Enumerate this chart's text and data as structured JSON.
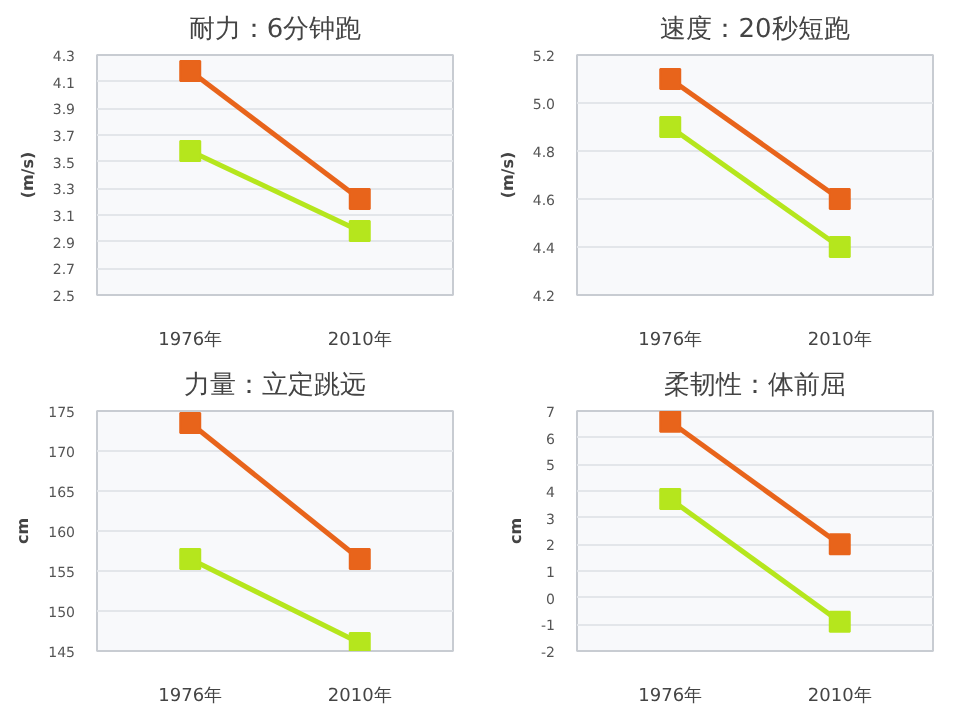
{
  "chart_data": [
    {
      "type": "line",
      "title": "耐力：6分钟跑",
      "ylabel": "(m/s)",
      "categories": [
        "1976年",
        "2010年"
      ],
      "ylim": [
        2.5,
        4.3
      ],
      "yticks": [
        2.5,
        2.7,
        2.9,
        3.1,
        3.3,
        3.5,
        3.7,
        3.9,
        4.1,
        4.3
      ],
      "grid": "y",
      "marker": "square",
      "series": [
        {
          "color": "#e8641b",
          "values": [
            4.18,
            3.22
          ]
        },
        {
          "color": "#b5e61d",
          "values": [
            3.58,
            2.98
          ]
        }
      ]
    },
    {
      "type": "line",
      "title": "速度：20秒短跑",
      "ylabel": "(m/s)",
      "categories": [
        "1976年",
        "2010年"
      ],
      "ylim": [
        4.2,
        5.2
      ],
      "yticks": [
        4.2,
        4.4,
        4.6,
        4.8,
        {
          "value": 5.0,
          "label": "5.0"
        },
        5.2
      ],
      "grid": "y",
      "marker": "square",
      "series": [
        {
          "color": "#e8641b",
          "values": [
            5.1,
            4.6
          ]
        },
        {
          "color": "#b5e61d",
          "values": [
            4.9,
            4.4
          ]
        }
      ]
    },
    {
      "type": "line",
      "title": "力量：立定跳远",
      "ylabel": "cm",
      "categories": [
        "1976年",
        "2010年"
      ],
      "ylim": [
        145,
        175
      ],
      "yticks": [
        145,
        150,
        155,
        160,
        165,
        170,
        175
      ],
      "grid": "y",
      "marker": "square",
      "series": [
        {
          "color": "#e8641b",
          "values": [
            173.5,
            156.5
          ]
        },
        {
          "color": "#b5e61d",
          "values": [
            156.5,
            146
          ]
        }
      ]
    },
    {
      "type": "line",
      "title": "柔韧性：体前屈",
      "ylabel": "cm",
      "categories": [
        "1976年",
        "2010年"
      ],
      "ylim": [
        -2,
        7
      ],
      "yticks": [
        -2,
        -1,
        0,
        1,
        2,
        3,
        4,
        5,
        6,
        7
      ],
      "grid": "y",
      "marker": "square",
      "series": [
        {
          "color": "#e8641b",
          "values": [
            6.6,
            2.0
          ]
        },
        {
          "color": "#b5e61d",
          "values": [
            3.7,
            -0.9
          ]
        }
      ]
    }
  ]
}
